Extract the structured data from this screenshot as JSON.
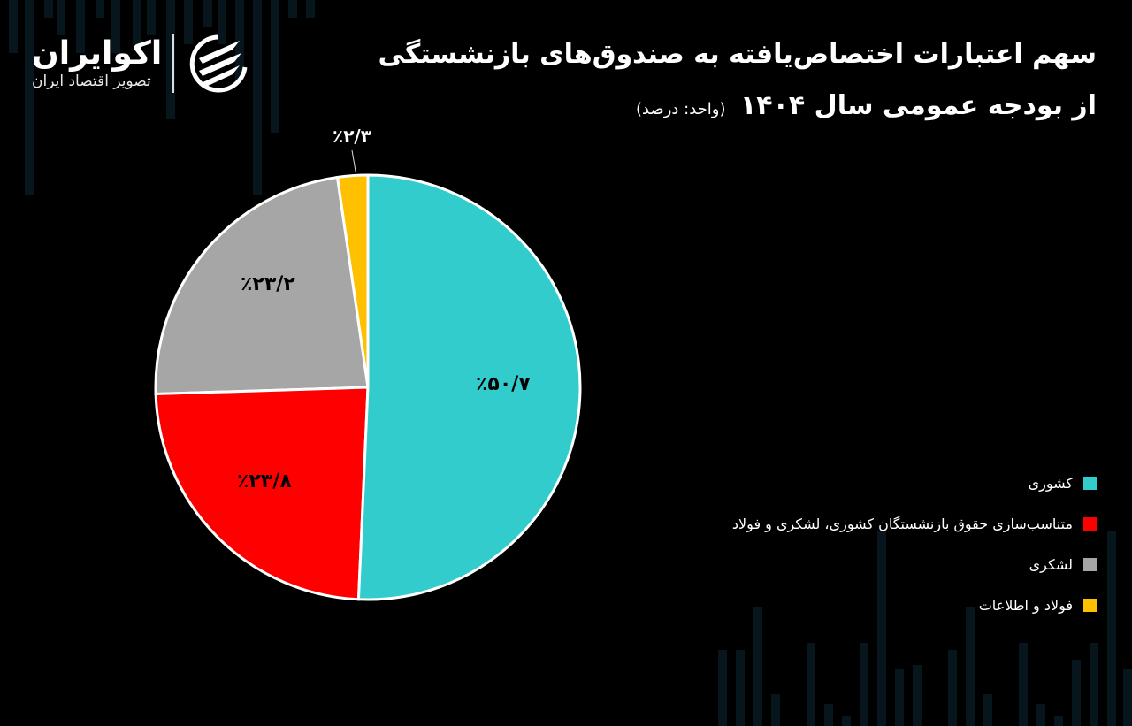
{
  "brand": {
    "name": "اکوایران",
    "tagline": "تصویر اقتصاد ایران",
    "accent": "#ffffff"
  },
  "header": {
    "title_line1": "سهم اعتبارات اختصاص‌یافته به صندوق‌های بازنشستگی",
    "title_line2": "از بودجه عمومی سال ۱۴۰۴",
    "unit": "(واحد: درصد)"
  },
  "chart_data": {
    "type": "pie",
    "title": "سهم اعتبارات اختصاص‌یافته به صندوق‌های بازنشستگی از بودجه عمومی سال ۱۴۰۴",
    "unit": "درصد",
    "categories": [
      "کشوری",
      "متناسب‌سازی حقوق بازنشستگان کشوری، لشکری و فولاد",
      "لشکری",
      "فولاد و اطلاعات"
    ],
    "values": [
      50.7,
      23.8,
      23.2,
      2.3
    ],
    "labels": [
      "٪۵۰/۷",
      "٪۲۳/۸",
      "٪۲۳/۲",
      "٪۲/۳"
    ],
    "colors": [
      "#33CCCC",
      "#FF0000",
      "#A6A6A6",
      "#FFC000"
    ],
    "start_angle": "12 o'clock",
    "direction": "clockwise",
    "legend_position": "right"
  },
  "legend": {
    "items": [
      {
        "label": "کشوری",
        "color": "#33CCCC"
      },
      {
        "label": "متناسب‌سازی حقوق بازنشستگان کشوری، لشکری و فولاد",
        "color": "#FF0000"
      },
      {
        "label": "لشکری",
        "color": "#A6A6A6"
      },
      {
        "label": "فولاد و اطلاعات",
        "color": "#FFC000"
      }
    ]
  }
}
